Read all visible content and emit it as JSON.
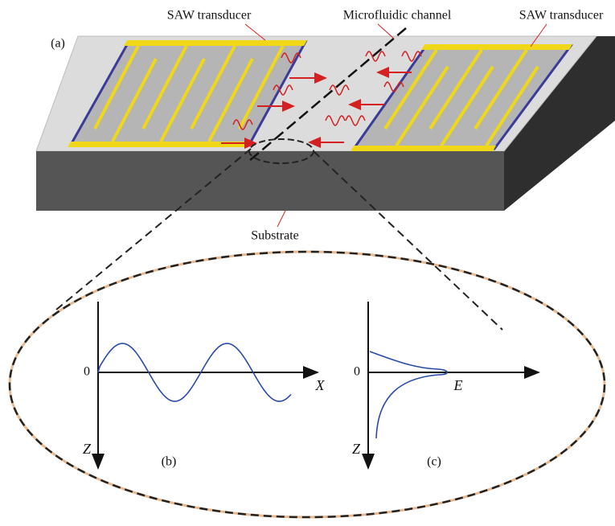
{
  "panel_a": {
    "label": "(a)",
    "left_transducer": "SAW transducer",
    "channel": "Microfluidic channel",
    "right_transducer": "SAW transducer",
    "substrate": "Substrate"
  },
  "panel_b": {
    "label": "(b)",
    "origin": "0",
    "x_axis": "X",
    "z_axis": "Z"
  },
  "panel_c": {
    "label": "(c)",
    "origin": "0",
    "x_axis": "E",
    "z_axis": "Z"
  }
}
